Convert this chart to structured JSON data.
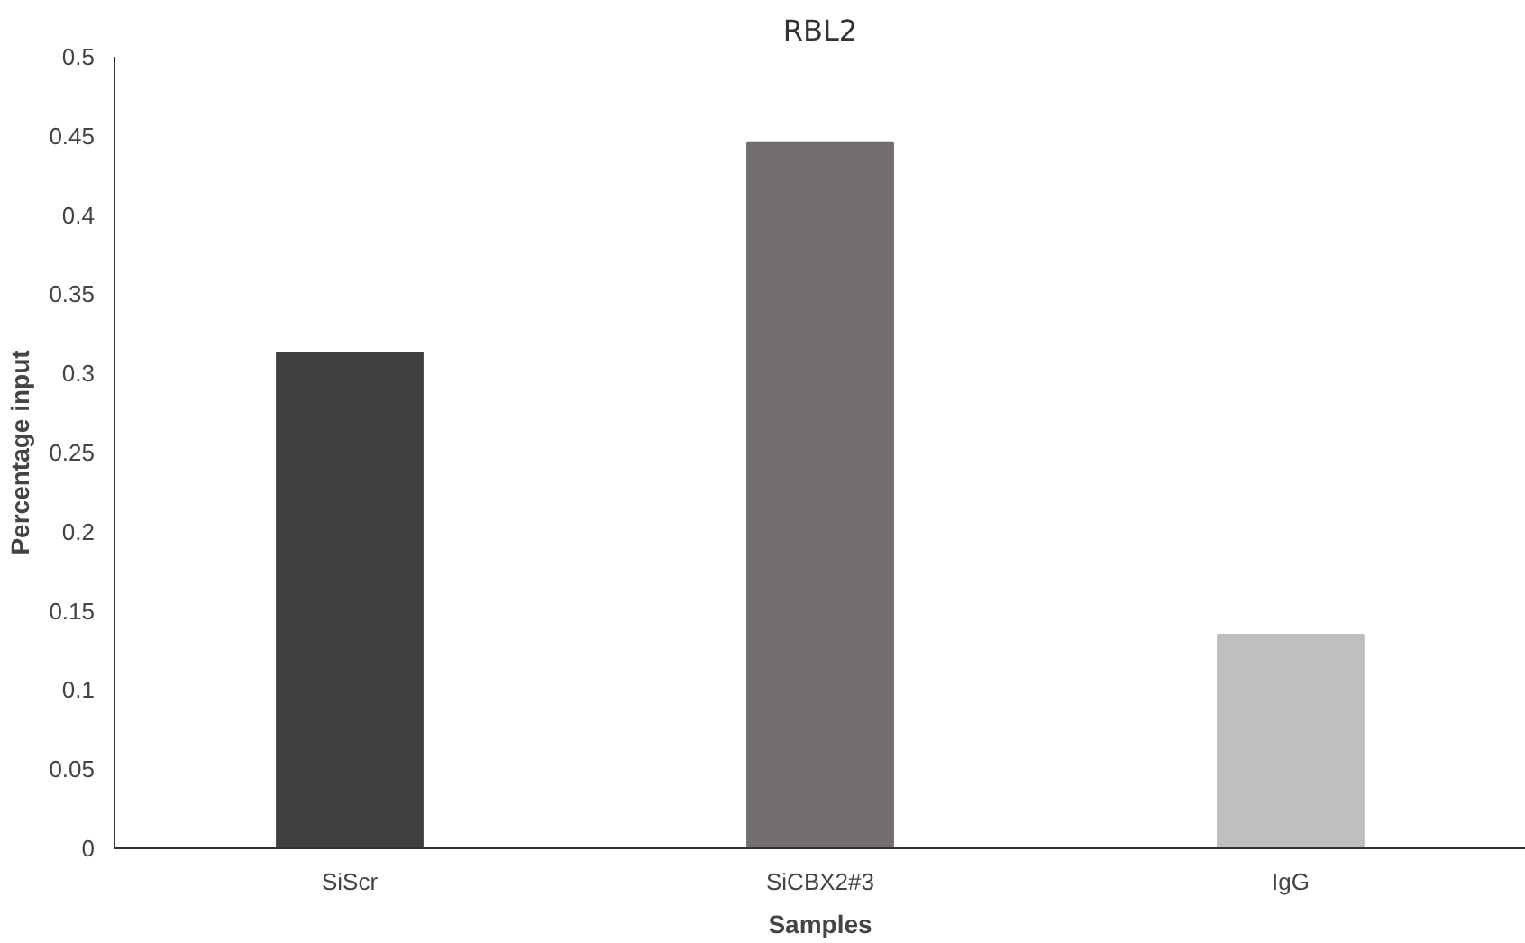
{
  "chart_data": {
    "type": "bar",
    "title": "RBL2",
    "xlabel": "Samples",
    "ylabel": "Percentage input",
    "categories": [
      "SiScr",
      "SiCBX2#3",
      "IgG"
    ],
    "values": [
      0.313,
      0.446,
      0.135
    ],
    "colors": [
      "#404040",
      "#736e6d",
      "#bfbfbf"
    ],
    "ylim": [
      0,
      0.5
    ],
    "yticks": [
      0,
      0.05,
      0.1,
      0.15,
      0.2,
      0.25,
      0.3,
      0.35,
      0.4,
      0.45,
      0.5
    ],
    "grid": false
  }
}
